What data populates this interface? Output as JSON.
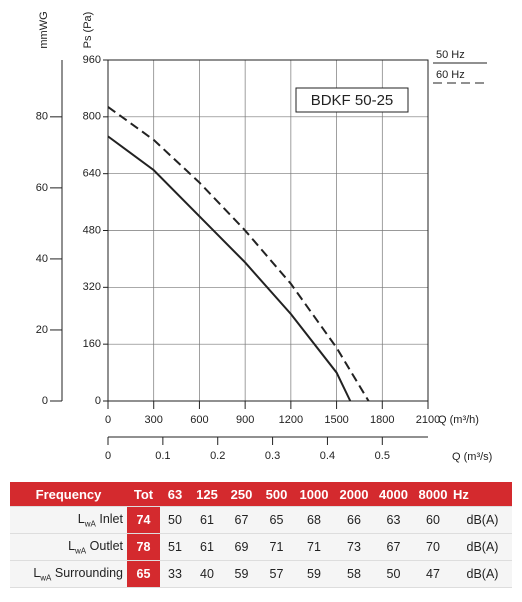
{
  "chart_data": {
    "type": "line",
    "y_label": "Ps (Pa)",
    "y2_label": "mmWG",
    "x_label": "Q (m³/h)",
    "x2_label": "Q (m³/s)",
    "annotation": "BDKF 50-25",
    "xlim": [
      0,
      2100
    ],
    "xticks": [
      0,
      300,
      600,
      900,
      1200,
      1500,
      1800,
      2100
    ],
    "ylim": [
      0,
      960
    ],
    "yticks": [
      0,
      160,
      320,
      480,
      640,
      800,
      960
    ],
    "y2lim": [
      0,
      96
    ],
    "y2ticks": [
      0,
      20,
      40,
      60,
      80
    ],
    "x2lim": [
      0,
      0.5833
    ],
    "x2ticks": [
      0,
      0.1,
      0.2,
      0.3,
      0.4,
      0.5
    ],
    "grid": true,
    "legend": "top-right",
    "series": [
      {
        "name": "50 Hz",
        "color": "#222222",
        "dash": "solid",
        "x": [
          0,
          300,
          600,
          900,
          1200,
          1500,
          1590
        ],
        "values": [
          745,
          650,
          520,
          390,
          245,
          80,
          0
        ]
      },
      {
        "name": "60 Hz",
        "color": "#222222",
        "dash": "dashed",
        "x": [
          0,
          300,
          600,
          900,
          1200,
          1500,
          1710
        ],
        "values": [
          828,
          735,
          615,
          480,
          330,
          150,
          0
        ]
      }
    ]
  },
  "table": {
    "header": [
      "Frequency",
      "Tot",
      "63",
      "125",
      "250",
      "500",
      "1000",
      "2000",
      "4000",
      "8000",
      "Hz"
    ],
    "rows": [
      {
        "symbol": "L",
        "subscript": "wA",
        "name": "Inlet",
        "cells": [
          "74",
          "50",
          "61",
          "67",
          "65",
          "68",
          "66",
          "63",
          "60",
          "dB(A)"
        ]
      },
      {
        "symbol": "L",
        "subscript": "wA",
        "name": "Outlet",
        "cells": [
          "78",
          "51",
          "61",
          "69",
          "71",
          "71",
          "73",
          "67",
          "70",
          "dB(A)"
        ]
      },
      {
        "symbol": "L",
        "subscript": "wA",
        "name": "Surrounding",
        "cells": [
          "65",
          "33",
          "40",
          "59",
          "57",
          "59",
          "58",
          "50",
          "47",
          "dB(A)"
        ]
      }
    ]
  }
}
